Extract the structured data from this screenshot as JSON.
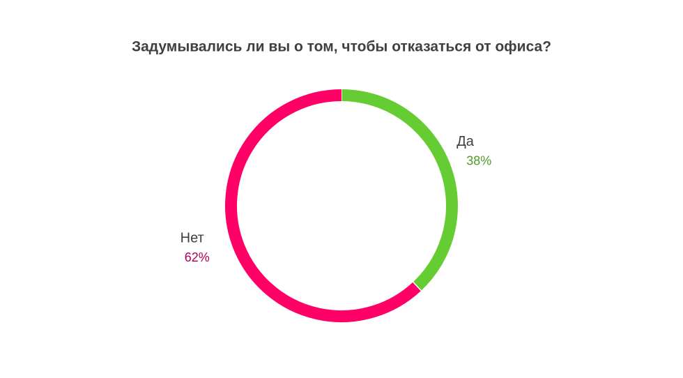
{
  "chart_data": {
    "type": "pie",
    "title": "Задумывались ли вы о том, чтобы отказаться от офиса?",
    "categories": [
      "Да",
      "Нет"
    ],
    "values": [
      38,
      62
    ],
    "value_labels": [
      "38%",
      "62%"
    ],
    "colors": [
      "#66cc33",
      "#ff0066"
    ],
    "label_colors": [
      "#4f9a2a",
      "#b0005a"
    ]
  }
}
